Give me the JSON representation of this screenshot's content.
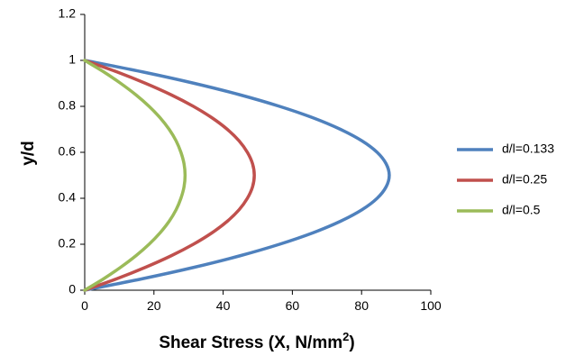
{
  "chart_data": {
    "type": "line",
    "xlabel": "Shear Stress (X, N/mm",
    "xlabel_superscript": "2",
    "xlabel_close": ")",
    "ylabel": "y/d",
    "xlim": [
      0,
      100
    ],
    "ylim": [
      0,
      1.2
    ],
    "xticks": [
      "0",
      "20",
      "40",
      "60",
      "80",
      "100"
    ],
    "yticks": [
      "0",
      "0.2",
      "0.4",
      "0.6",
      "0.8",
      "1",
      "1.2"
    ],
    "grid": false,
    "legend_position": "right",
    "y": [
      0,
      0.05,
      0.1,
      0.15,
      0.2,
      0.25,
      0.3,
      0.35,
      0.4,
      0.45,
      0.5,
      0.55,
      0.6,
      0.65,
      0.7,
      0.75,
      0.8,
      0.85,
      0.9,
      0.95,
      1
    ],
    "series": [
      {
        "name": "d/l=0.133",
        "color": "#4F81BD",
        "x": [
          0,
          16.7,
          31.7,
          44.9,
          56.3,
          66.0,
          73.9,
          80.1,
          84.5,
          87.1,
          88.0,
          87.1,
          84.5,
          80.1,
          73.9,
          66.0,
          56.3,
          44.9,
          31.7,
          16.7,
          0
        ]
      },
      {
        "name": "d/l=0.25",
        "color": "#C0504D",
        "x": [
          0,
          9.3,
          17.6,
          25.0,
          31.4,
          36.8,
          41.2,
          44.6,
          47.0,
          48.5,
          49.0,
          48.5,
          47.0,
          44.6,
          41.2,
          36.8,
          31.4,
          25.0,
          17.6,
          9.3,
          0
        ]
      },
      {
        "name": "d/l=0.5",
        "color": "#9BBB59",
        "x": [
          0,
          5.5,
          10.4,
          14.8,
          18.6,
          21.8,
          24.4,
          26.4,
          27.8,
          28.7,
          29.0,
          28.7,
          27.8,
          26.4,
          24.4,
          21.8,
          18.6,
          14.8,
          10.4,
          5.5,
          0
        ]
      }
    ]
  }
}
